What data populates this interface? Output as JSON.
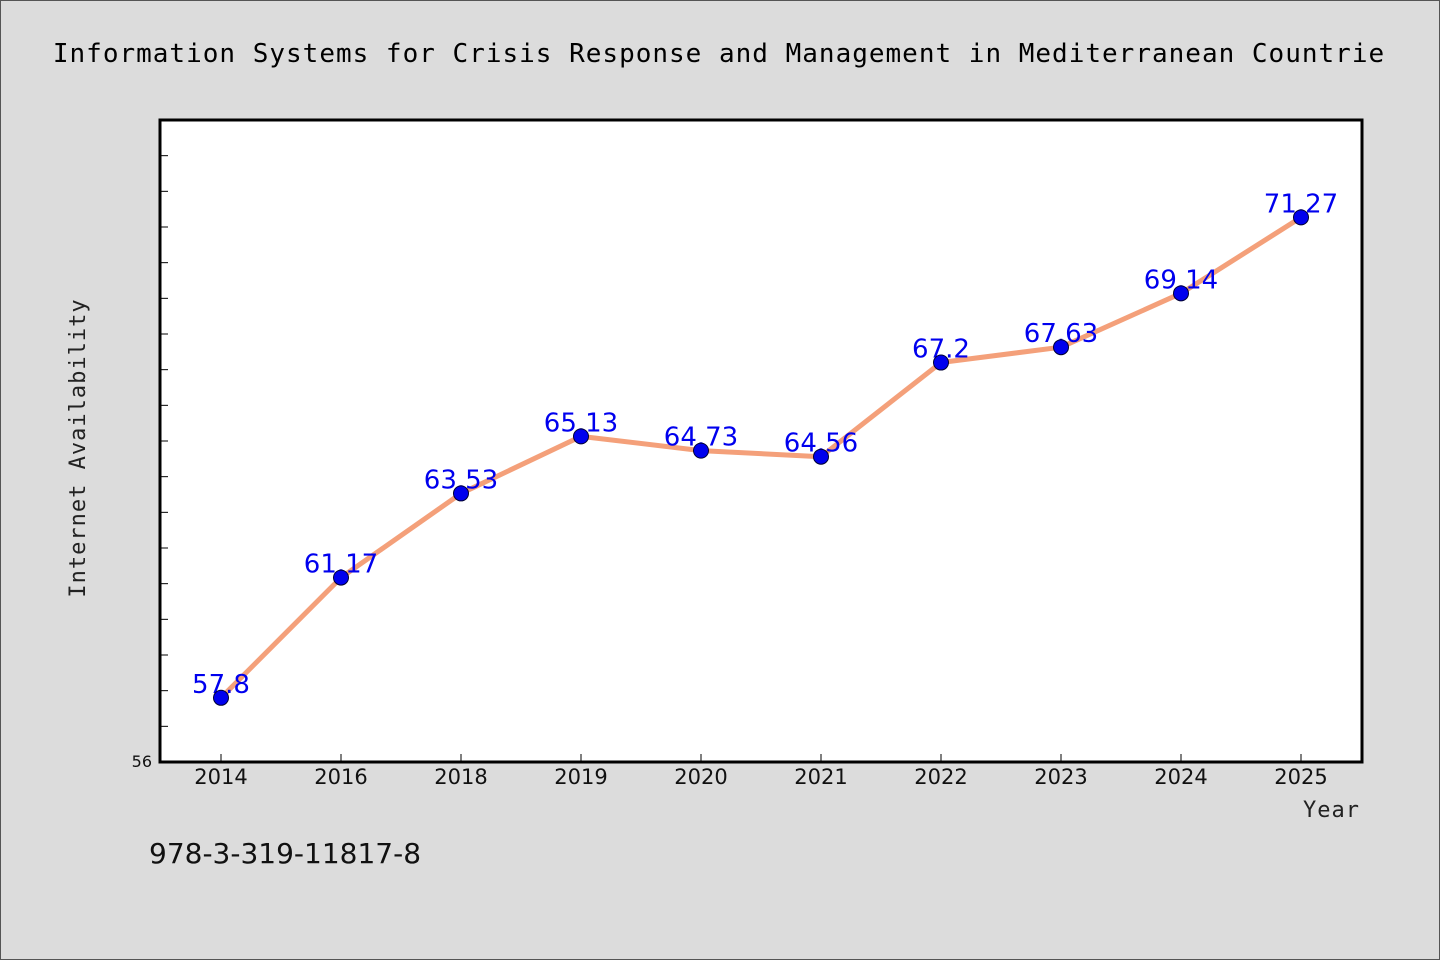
{
  "chart_data": {
    "type": "line",
    "title": "Information Systems for Crisis Response and Management in Mediterranean Countrie",
    "xlabel": "Year",
    "ylabel": "Internet Availability",
    "categories": [
      "2014",
      "2016",
      "2018",
      "2019",
      "2020",
      "2021",
      "2022",
      "2023",
      "2024",
      "2025"
    ],
    "series": [
      {
        "values": [
          57.8,
          61.17,
          63.53,
          65.13,
          64.73,
          64.56,
          67.2,
          67.63,
          69.14,
          71.27
        ],
        "line_color": "#f4a07a",
        "marker_color": "#0000ee",
        "label_color": "#0000ee"
      }
    ],
    "data_labels": [
      "57.8",
      "61.17",
      "63.53",
      "65.13",
      "64.73",
      "64.56",
      "67.2",
      "67.63",
      "69.14",
      "71.27"
    ],
    "ylim": [
      56,
      74
    ],
    "y_tick_label": "56",
    "y_minor_tick_step": 1,
    "grid": false,
    "legend": "none"
  },
  "footer": {
    "isbn": "978-3-319-11817-8"
  },
  "colors": {
    "background": "#dcdcdc",
    "plot_background": "#ffffff",
    "axis": "#000000"
  }
}
